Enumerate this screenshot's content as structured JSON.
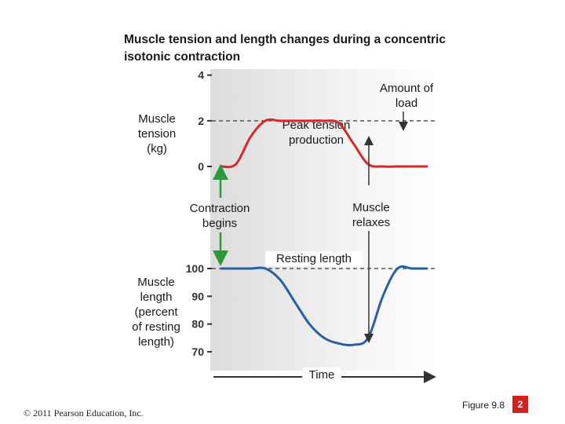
{
  "chart_data": [
    {
      "type": "line",
      "title": "Muscle tension and length changes during a concentric isotonic contraction",
      "ylabel": "Muscle tension (kg)",
      "yticks": [
        0,
        2,
        4
      ],
      "ylim": [
        0,
        4.4
      ],
      "series": [
        {
          "name": "",
          "color": "#d42a2a",
          "values": [
            0,
            0.1,
            1.3,
            2.0,
            2.0,
            2.0,
            2.0,
            2.0,
            1.9,
            1.0,
            0.1,
            0,
            0,
            0,
            0
          ]
        }
      ],
      "reference_line": {
        "value": 2,
        "style": "dashed"
      }
    },
    {
      "type": "line",
      "ylabel": "Muscle length (percent of resting length)",
      "yticks": [
        70,
        80,
        90,
        100
      ],
      "ylim": [
        70,
        100
      ],
      "xlabel": "Time",
      "series": [
        {
          "name": "",
          "color": "#2a5fa8",
          "values": [
            100,
            100,
            100,
            100,
            96,
            88,
            80,
            75,
            73,
            72.5,
            75,
            90,
            100,
            100,
            100
          ]
        }
      ],
      "reference_line": {
        "value": 100,
        "style": "dashed"
      }
    }
  ],
  "annotations": {
    "title": "Muscle tension and length changes during a concentric isotonic contraction",
    "amount_of_load": "Amount of load",
    "peak_tension": "Peak tension production",
    "contraction_begins": "Contraction begins",
    "muscle_relaxes": "Muscle relaxes",
    "resting_length": "Resting length",
    "time": "Time",
    "tension_ylabel": [
      "Muscle",
      "tension",
      "(kg)"
    ],
    "length_ylabel": [
      "Muscle",
      "length",
      "(percent",
      "of resting",
      "length)"
    ]
  },
  "footer": {
    "copyright": "© 2011 Pearson Education, Inc.",
    "figure": "Figure 9.8",
    "badge": "2"
  },
  "colors": {
    "tension": "#d42a2a",
    "length": "#2a5fa8",
    "start_arrow": "#2c9a3a",
    "badge": "#d32020"
  }
}
